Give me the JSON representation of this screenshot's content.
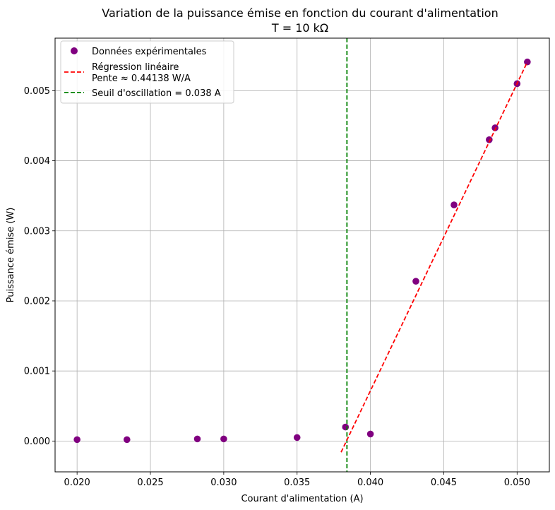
{
  "chart_data": {
    "type": "scatter",
    "title": "Variation de la puissance émise en fonction du courant d'alimentation",
    "subtitle": "T = 10 kΩ",
    "xlabel": "Courant d'alimentation (A)",
    "ylabel": "Puissance émise (W)",
    "xlim": [
      0.0185,
      0.0522
    ],
    "ylim": [
      -0.00044,
      0.00575
    ],
    "xticks": [
      0.02,
      0.025,
      0.03,
      0.035,
      0.04,
      0.045,
      0.05
    ],
    "xtick_labels": [
      "0.020",
      "0.025",
      "0.030",
      "0.035",
      "0.040",
      "0.045",
      "0.050"
    ],
    "yticks": [
      0.0,
      0.001,
      0.002,
      0.003,
      0.004,
      0.005
    ],
    "ytick_labels": [
      "0.000",
      "0.001",
      "0.002",
      "0.003",
      "0.004",
      "0.005"
    ],
    "grid": true,
    "legend_position": "top-left",
    "series": [
      {
        "name": "Données expérimentales",
        "kind": "scatter",
        "color": "#800080",
        "x": [
          0.02,
          0.0234,
          0.0282,
          0.03,
          0.035,
          0.0383,
          0.04,
          0.0431,
          0.0457,
          0.0481,
          0.0485,
          0.05,
          0.0507
        ],
        "y": [
          2e-05,
          2e-05,
          3e-05,
          3e-05,
          5e-05,
          0.0002,
          0.0001,
          0.00228,
          0.00337,
          0.0043,
          0.00447,
          0.0051,
          0.00541
        ]
      },
      {
        "name": "Régression linéaire\nPente ≈ 0.44138 W/A",
        "name_lines": [
          "Régression linéaire",
          "Pente ≈ 0.44138 W/A"
        ],
        "kind": "line",
        "style": "dashed",
        "color": "#ff0000",
        "x": [
          0.038,
          0.0507
        ],
        "y": [
          -0.00016,
          0.00541
        ]
      },
      {
        "name": "Seuil d'oscillation = 0.038 A",
        "kind": "vline",
        "style": "dashed",
        "color": "#008000",
        "x": 0.0384
      }
    ]
  }
}
